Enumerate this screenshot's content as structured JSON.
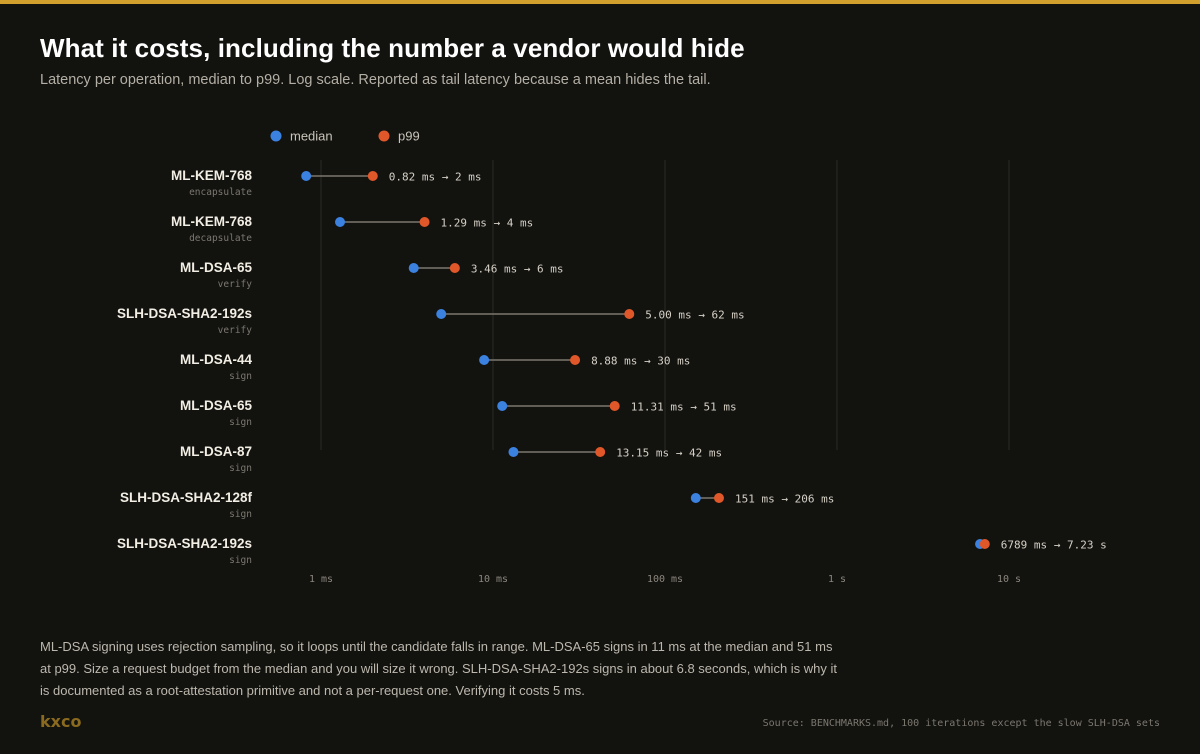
{
  "header": {
    "title": "What it costs, including the number a vendor would hide",
    "subtitle": "Latency per operation, median to p99. Log scale. Reported as tail latency because a mean hides the tail."
  },
  "chart_data": {
    "type": "dumbbell",
    "scale": "log",
    "x_unit": "ms",
    "xlim": [
      0.65,
      18000
    ],
    "x_ticks": [
      {
        "value": 1,
        "label": "1 ms"
      },
      {
        "value": 10,
        "label": "10 ms"
      },
      {
        "value": 100,
        "label": "100 ms"
      },
      {
        "value": 1000,
        "label": "1 s"
      },
      {
        "value": 10000,
        "label": "10 s"
      }
    ],
    "grid": true,
    "legend": {
      "placement": "top-left",
      "items": [
        {
          "name": "median",
          "color": "#3b82e0"
        },
        {
          "name": "p99",
          "color": "#e0582a"
        }
      ]
    },
    "rows": [
      {
        "name": "ML-KEM-768",
        "op": "encapsulate",
        "median": 0.82,
        "p99": 2,
        "label": "0.82 ms → 2 ms"
      },
      {
        "name": "ML-KEM-768",
        "op": "decapsulate",
        "median": 1.29,
        "p99": 4,
        "label": "1.29 ms → 4 ms"
      },
      {
        "name": "ML-DSA-65",
        "op": "verify",
        "median": 3.46,
        "p99": 6,
        "label": "3.46 ms → 6 ms"
      },
      {
        "name": "SLH-DSA-SHA2-192s",
        "op": "verify",
        "median": 5.0,
        "p99": 62,
        "label": "5.00 ms → 62 ms"
      },
      {
        "name": "ML-DSA-44",
        "op": "sign",
        "median": 8.88,
        "p99": 30,
        "label": "8.88 ms → 30 ms"
      },
      {
        "name": "ML-DSA-65",
        "op": "sign",
        "median": 11.31,
        "p99": 51,
        "label": "11.31 ms → 51 ms"
      },
      {
        "name": "ML-DSA-87",
        "op": "sign",
        "median": 13.15,
        "p99": 42,
        "label": "13.15 ms → 42 ms"
      },
      {
        "name": "SLH-DSA-SHA2-128f",
        "op": "sign",
        "median": 151,
        "p99": 206,
        "label": "151 ms → 206 ms"
      },
      {
        "name": "SLH-DSA-SHA2-192s",
        "op": "sign",
        "median": 6789,
        "p99": 7230,
        "label": "6789 ms → 7.23 s"
      }
    ]
  },
  "footer": {
    "note": "ML-DSA signing uses rejection sampling, so it loops until the candidate falls in range. ML-DSA-65 signs in 11 ms at the median and 51 ms at p99. Size a request budget from the median and you will size it wrong. SLH-DSA-SHA2-192s signs in about 6.8 seconds, which is why it is documented as a root-attestation primitive and not a per-request one. Verifying it costs 5 ms.",
    "logo": "kxco",
    "source": "Source: BENCHMARKS.md, 100 iterations except the slow SLH-DSA sets"
  }
}
